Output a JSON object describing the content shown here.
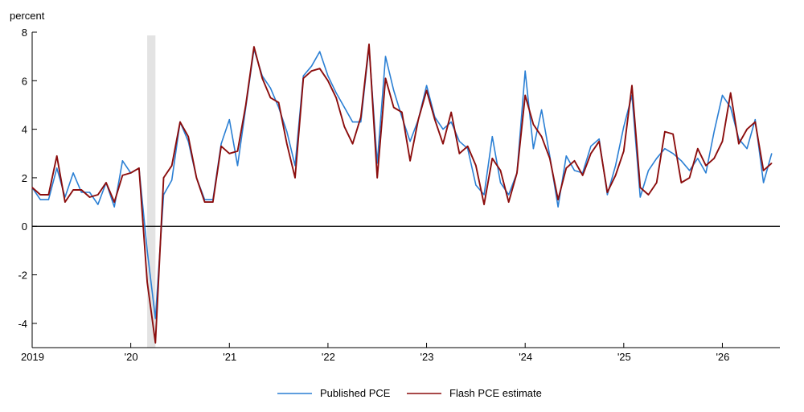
{
  "chart_data": {
    "type": "line",
    "ylabel": "percent",
    "ylim": [
      -5,
      8
    ],
    "yticks": [
      -4,
      -2,
      0,
      2,
      4,
      6,
      8
    ],
    "xlim": [
      2019.0,
      2026.5833
    ],
    "xticks": [
      {
        "value": 2019,
        "label": "2019"
      },
      {
        "value": 2020,
        "label": "'20"
      },
      {
        "value": 2021,
        "label": "'21"
      },
      {
        "value": 2022,
        "label": "'22"
      },
      {
        "value": 2023,
        "label": "'23"
      },
      {
        "value": 2024,
        "label": "'24"
      },
      {
        "value": 2025,
        "label": "'25"
      },
      {
        "value": 2026,
        "label": "'26"
      }
    ],
    "recession_shading": [
      2020.1667,
      2020.25
    ],
    "zero_line": true,
    "legend_position": "bottom-center",
    "start": "2019-01",
    "series": [
      {
        "name": "Published PCE",
        "color": "#2a7fd4",
        "values": [
          1.6,
          1.1,
          1.1,
          2.4,
          1.2,
          2.2,
          1.4,
          1.4,
          0.9,
          1.8,
          0.8,
          2.7,
          2.2,
          2.4,
          -1.0,
          -3.8,
          1.3,
          1.9,
          4.3,
          3.5,
          2.0,
          1.1,
          1.1,
          3.4,
          4.4,
          2.5,
          4.9,
          7.3,
          6.2,
          5.7,
          4.9,
          3.9,
          2.5,
          6.2,
          6.6,
          7.2,
          6.2,
          5.5,
          4.9,
          4.3,
          4.3,
          7.4,
          2.6,
          7.0,
          5.6,
          4.5,
          3.5,
          4.4,
          5.8,
          4.5,
          4.0,
          4.3,
          3.5,
          3.2,
          1.7,
          1.3,
          3.7,
          1.8,
          1.3,
          2.2,
          6.4,
          3.2,
          4.8,
          2.9,
          0.8,
          2.9,
          2.3,
          2.2,
          3.3,
          3.6,
          1.3,
          2.5,
          4.1,
          5.4,
          1.2,
          2.3,
          2.8,
          3.2,
          3.0,
          2.7,
          2.3,
          2.8,
          2.2,
          3.9,
          5.4,
          4.9,
          3.6,
          3.2,
          4.4,
          1.8,
          3.0
        ]
      },
      {
        "name": "Flash PCE estimate",
        "color": "#8b0d0d",
        "values": [
          1.6,
          1.3,
          1.3,
          2.9,
          1.0,
          1.5,
          1.5,
          1.2,
          1.3,
          1.8,
          1.0,
          2.1,
          2.2,
          2.4,
          -2.3,
          -4.8,
          2.0,
          2.5,
          4.3,
          3.7,
          2.0,
          1.0,
          1.0,
          3.3,
          3.0,
          3.1,
          5.0,
          7.4,
          6.1,
          5.3,
          5.1,
          3.4,
          2.0,
          6.1,
          6.4,
          6.5,
          6.0,
          5.3,
          4.1,
          3.4,
          4.5,
          7.5,
          2.0,
          6.1,
          4.9,
          4.7,
          2.7,
          4.4,
          5.6,
          4.4,
          3.4,
          4.7,
          3.0,
          3.3,
          2.5,
          0.9,
          2.8,
          2.3,
          1.0,
          2.2,
          5.4,
          4.2,
          3.7,
          2.8,
          1.1,
          2.4,
          2.7,
          2.1,
          3.0,
          3.5,
          1.4,
          2.1,
          3.1,
          5.8,
          1.6,
          1.3,
          1.8,
          3.9,
          3.8,
          1.8,
          2.0,
          3.2,
          2.5,
          2.8,
          3.5,
          5.5,
          3.4,
          4.0,
          4.3,
          2.3,
          2.6
        ]
      }
    ]
  }
}
